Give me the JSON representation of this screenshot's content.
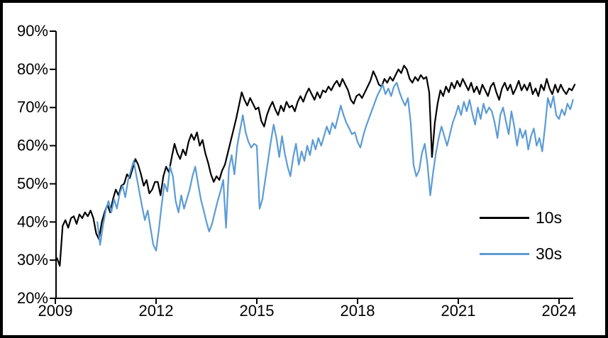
{
  "chart_data": {
    "type": "line",
    "title": "",
    "xlabel": "",
    "ylabel": "",
    "grid": false,
    "legend": {
      "position": "right-lower",
      "entries": [
        "10s",
        "30s"
      ]
    },
    "x_axis": {
      "range": [
        2009,
        2024.6
      ],
      "ticks": [
        2009,
        2012,
        2015,
        2018,
        2021,
        2024
      ],
      "tick_labels": [
        "2009",
        "2012",
        "2015",
        "2018",
        "2021",
        "2024"
      ]
    },
    "y_axis": {
      "min": 20,
      "max": 90,
      "tick_step": 10,
      "ticks": [
        20,
        30,
        40,
        50,
        60,
        70,
        80,
        90
      ],
      "tick_labels": [
        "20%",
        "30%",
        "40%",
        "50%",
        "60%",
        "70%",
        "80%",
        "90%"
      ],
      "unit": "%"
    },
    "series": [
      {
        "name": "10s",
        "color": "#000000",
        "start": 2009.05,
        "step": 0.083333,
        "values": [
          30.5,
          28.5,
          39,
          40.5,
          38.5,
          41,
          41.5,
          39.5,
          42,
          41,
          42.5,
          41.5,
          43,
          41,
          37,
          35.5,
          40,
          42.5,
          44.5,
          42.5,
          46,
          48.5,
          47,
          49.5,
          50,
          52.5,
          51.5,
          54,
          56.5,
          55,
          52.5,
          49.5,
          51,
          47.5,
          48.5,
          50.5,
          50.5,
          47,
          52,
          54.5,
          53,
          57,
          60.5,
          58,
          56.5,
          59,
          57.5,
          61,
          63,
          61.5,
          63.5,
          60,
          61.5,
          58,
          55.5,
          52.5,
          50.5,
          52,
          51,
          53.5,
          55,
          58,
          61,
          64,
          67,
          70.5,
          74,
          72,
          70.5,
          72.5,
          71,
          69.5,
          70,
          66.5,
          65,
          68,
          70,
          71.5,
          69.5,
          68,
          70.5,
          69,
          71.5,
          70,
          70.5,
          69,
          71.5,
          73,
          71.5,
          73.5,
          75,
          73.5,
          72,
          74,
          72.5,
          74.5,
          74,
          75.5,
          74.5,
          76,
          77,
          75.5,
          77.5,
          76,
          74.5,
          72,
          71,
          73,
          73.5,
          72.5,
          74,
          75.5,
          77,
          79.5,
          78,
          76,
          75.5,
          77.5,
          76.5,
          78,
          77,
          78.5,
          80,
          79,
          81,
          80,
          77.5,
          76.5,
          78,
          77,
          78.5,
          77.5,
          78,
          74,
          57,
          66,
          71,
          74.5,
          73,
          75.5,
          74,
          76.5,
          75,
          77,
          75.5,
          77.5,
          76,
          74.5,
          76.5,
          74,
          75.5,
          73.5,
          76,
          74.5,
          73,
          75.5,
          76.5,
          74,
          72,
          75,
          76.5,
          74.5,
          76,
          73.5,
          75,
          77,
          74.5,
          76,
          74.5,
          76.5,
          73.5,
          75,
          73,
          76,
          74.5,
          77.5,
          75,
          73.5,
          76,
          74,
          76,
          74.5,
          73.5,
          75,
          74.5,
          76
        ]
      },
      {
        "name": "30s",
        "color": "#5B9BD5",
        "start": 2010.25,
        "step": 0.083333,
        "values": [
          40,
          34,
          39,
          43,
          45.5,
          42.5,
          46,
          43.5,
          47.5,
          49.5,
          46.5,
          51,
          53.5,
          56,
          52,
          48,
          44,
          40.5,
          43,
          38.5,
          34,
          32.5,
          38,
          44.5,
          50,
          48,
          54.5,
          52,
          45.5,
          42.5,
          47,
          43.5,
          46,
          48.5,
          52,
          54.5,
          50,
          46,
          43,
          40,
          37.5,
          39.5,
          42.5,
          45.5,
          48,
          51,
          38.5,
          54,
          57.5,
          52.5,
          60,
          64,
          68,
          63.5,
          61,
          59.5,
          60.5,
          60,
          43.5,
          46,
          51,
          56,
          61,
          65.5,
          62,
          57,
          62.5,
          58,
          54.5,
          52,
          57,
          60.5,
          55,
          58.5,
          56,
          60,
          57.5,
          61.5,
          59,
          62,
          60,
          62.5,
          65,
          63,
          66,
          64.5,
          67.5,
          70.5,
          68,
          66,
          64.5,
          63,
          63.5,
          61,
          59.5,
          62.5,
          65,
          67,
          69,
          71,
          73,
          74.5,
          76,
          73.5,
          75,
          73,
          75.5,
          76.5,
          74,
          72,
          70.5,
          72.5,
          66,
          55,
          52,
          53.5,
          58,
          60.5,
          55,
          47,
          53,
          58,
          62,
          65,
          62.5,
          60,
          63,
          66,
          68,
          70.5,
          68,
          71.5,
          69,
          72,
          68.5,
          65.5,
          70,
          67,
          71,
          68.5,
          70,
          69,
          66,
          62,
          68,
          70,
          66.5,
          63,
          69,
          65,
          60,
          64.5,
          62,
          64,
          59,
          62.5,
          64.5,
          60,
          62,
          58.5,
          65,
          72.5,
          70,
          73,
          68,
          67,
          69.5,
          68,
          71,
          69.5,
          72
        ]
      }
    ]
  }
}
